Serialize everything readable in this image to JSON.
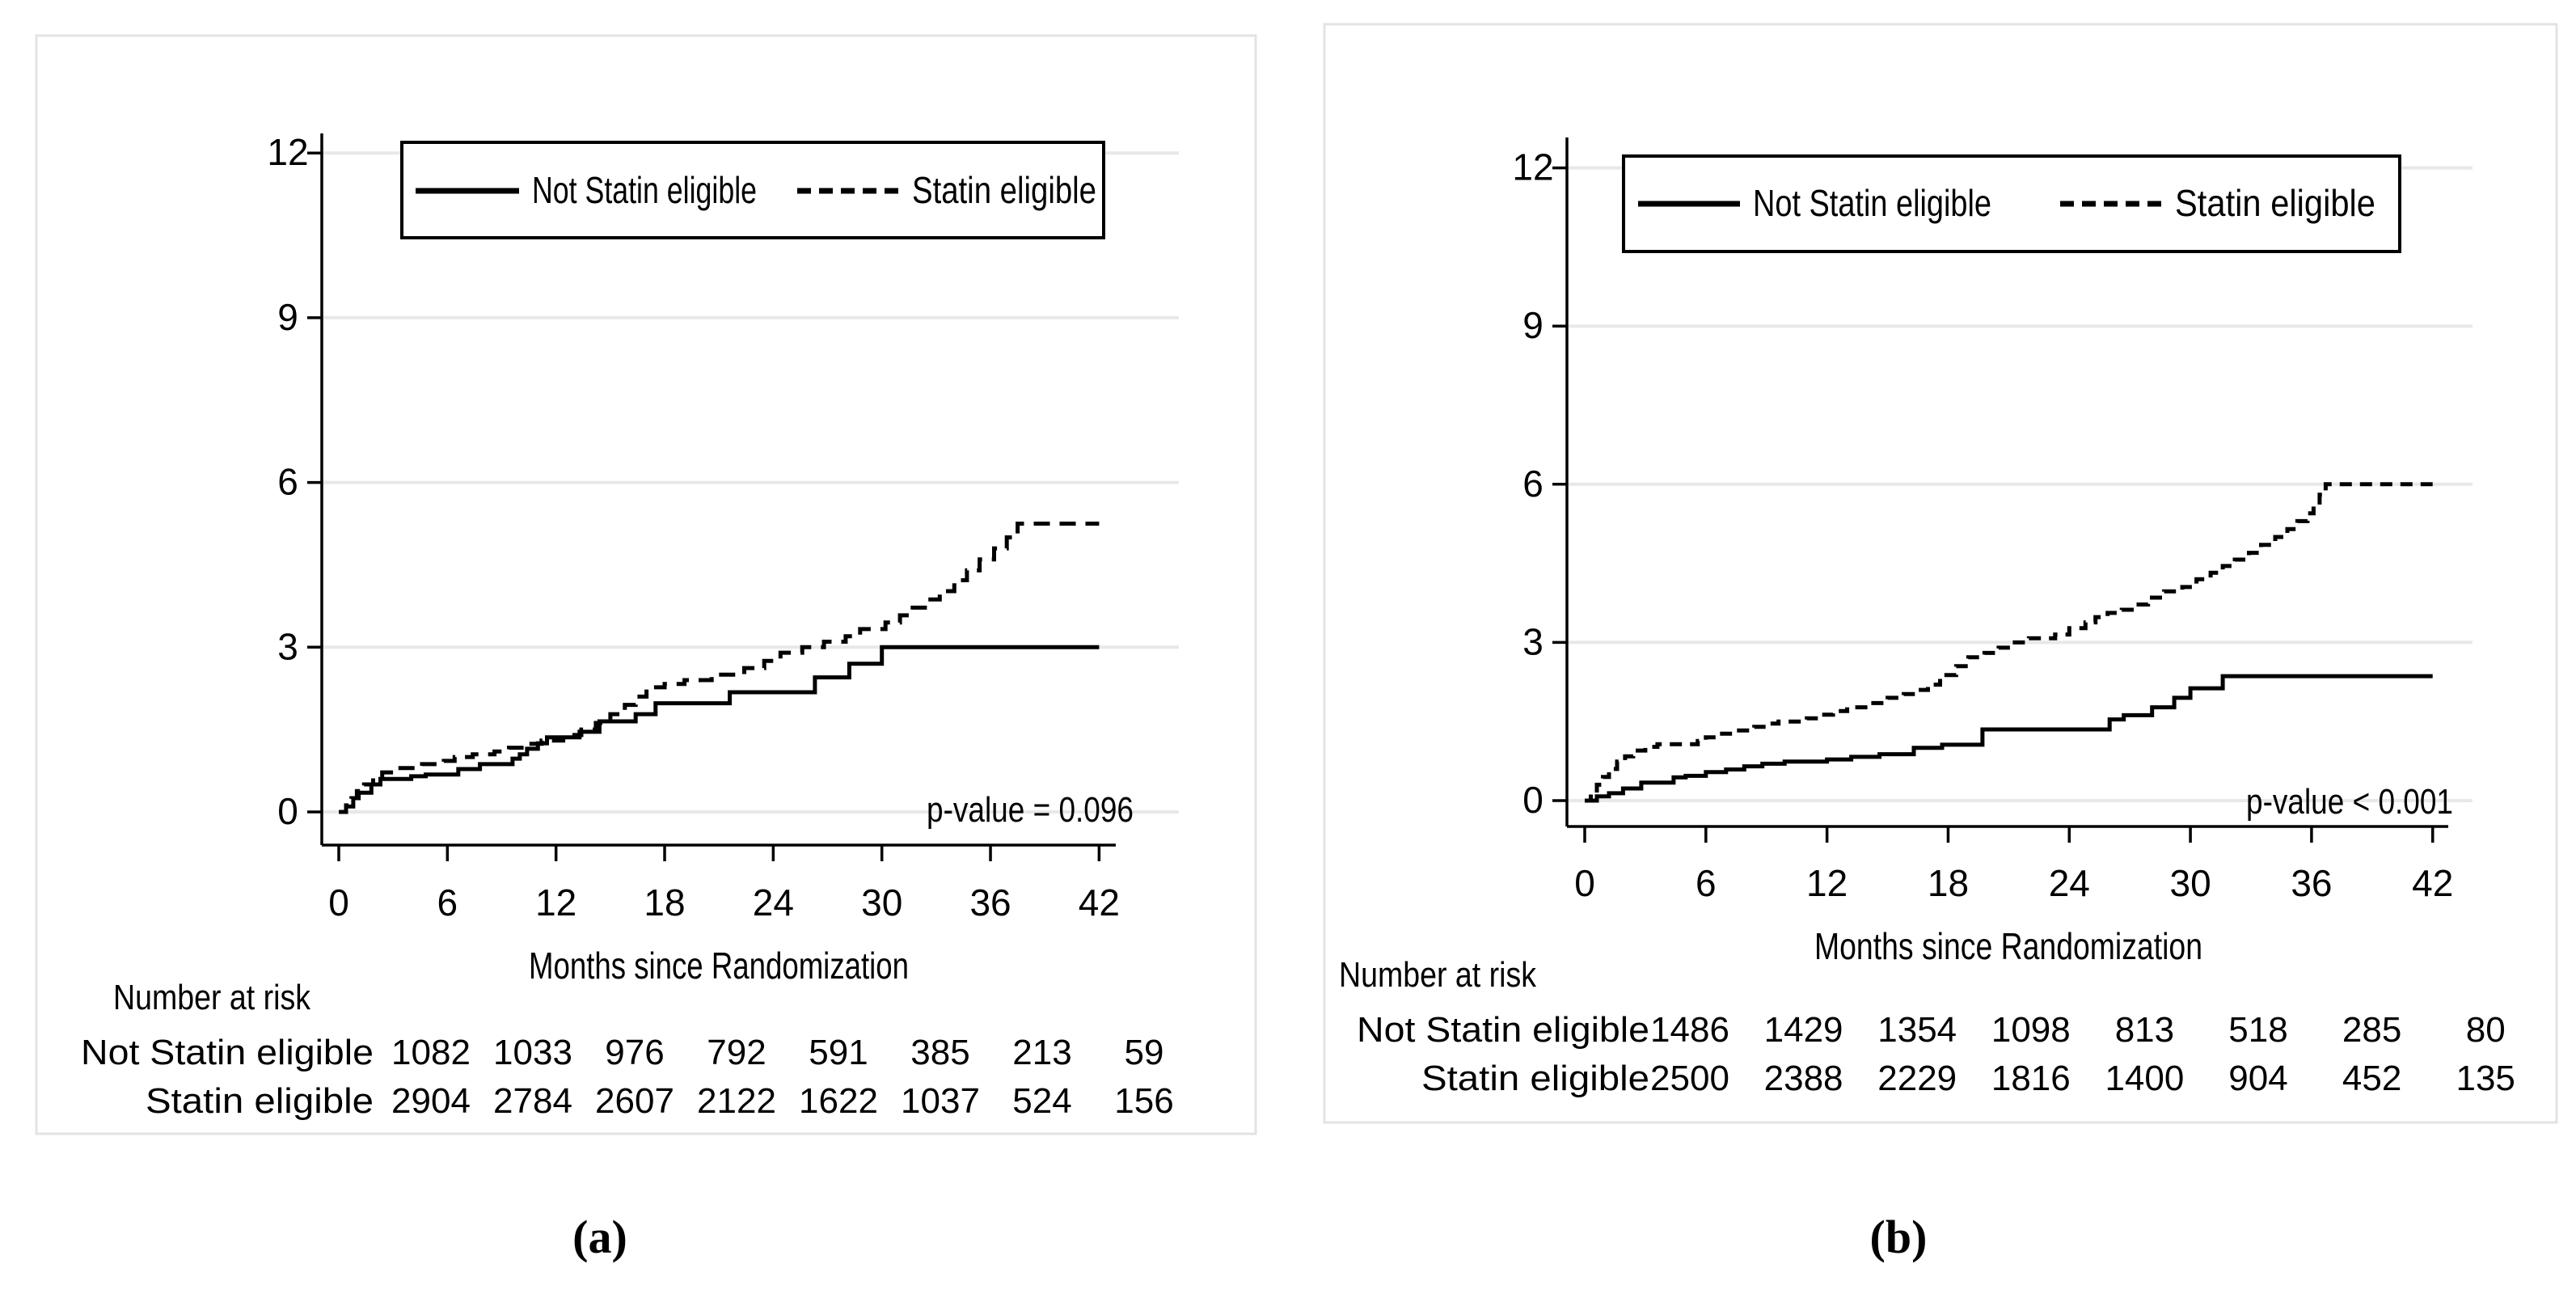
{
  "figure": {
    "background": "#ffffff",
    "grid_color": "#e8e8e8",
    "frame_color": "#e3e3e3",
    "line_color": "#000000"
  },
  "chart_data": [
    {
      "id": "a",
      "type": "line",
      "subtype": "kaplan-meier-cumulative-incidence-step",
      "caption": "(a)",
      "title": "",
      "xlabel": "Months since Randomization",
      "ylabel": "",
      "xlim": [
        0,
        42
      ],
      "ylim": [
        0,
        12
      ],
      "x_ticks": [
        0,
        6,
        12,
        18,
        24,
        30,
        36,
        42
      ],
      "y_ticks": [
        0,
        3,
        6,
        9,
        12
      ],
      "grid": true,
      "legend_position": "top-inside",
      "p_value_text": "p-value = 0.096",
      "series": [
        {
          "name": "Not Statin eligible",
          "style": "solid",
          "color": "#000000",
          "points": [
            [
              0,
              0
            ],
            [
              0.4,
              0.1
            ],
            [
              0.8,
              0.25
            ],
            [
              1.1,
              0.35
            ],
            [
              1.8,
              0.5
            ],
            [
              2.3,
              0.6
            ],
            [
              4,
              0.65
            ],
            [
              4.8,
              0.68
            ],
            [
              6.6,
              0.78
            ],
            [
              7.8,
              0.87
            ],
            [
              9.6,
              0.97
            ],
            [
              10,
              1.05
            ],
            [
              10.4,
              1.15
            ],
            [
              11,
              1.25
            ],
            [
              11.5,
              1.36
            ],
            [
              13.3,
              1.46
            ],
            [
              14.4,
              1.65
            ],
            [
              16.4,
              1.78
            ],
            [
              17.5,
              1.98
            ],
            [
              21.6,
              2.18
            ],
            [
              26.3,
              2.45
            ],
            [
              28.2,
              2.7
            ],
            [
              30,
              3
            ],
            [
              42,
              3
            ]
          ]
        },
        {
          "name": "Statin eligible",
          "style": "dashed",
          "color": "#000000",
          "points": [
            [
              0,
              0
            ],
            [
              0.4,
              0.12
            ],
            [
              0.7,
              0.25
            ],
            [
              1,
              0.38
            ],
            [
              1.4,
              0.5
            ],
            [
              1.9,
              0.62
            ],
            [
              2.4,
              0.72
            ],
            [
              3.2,
              0.8
            ],
            [
              4.6,
              0.87
            ],
            [
              5.8,
              0.93
            ],
            [
              6.4,
              1
            ],
            [
              7.4,
              1.05
            ],
            [
              8.6,
              1.1
            ],
            [
              9.4,
              1.17
            ],
            [
              10.3,
              1.24
            ],
            [
              11.2,
              1.3
            ],
            [
              12.4,
              1.4
            ],
            [
              13.4,
              1.5
            ],
            [
              14.2,
              1.62
            ],
            [
              15,
              1.78
            ],
            [
              15.8,
              1.95
            ],
            [
              16.4,
              2.1
            ],
            [
              17,
              2.27
            ],
            [
              18,
              2.33
            ],
            [
              19.1,
              2.4
            ],
            [
              20.6,
              2.5
            ],
            [
              22.4,
              2.62
            ],
            [
              23.5,
              2.75
            ],
            [
              24.4,
              2.9
            ],
            [
              25.6,
              3
            ],
            [
              26.8,
              3.1
            ],
            [
              28,
              3.2
            ],
            [
              28.8,
              3.33
            ],
            [
              30.2,
              3.45
            ],
            [
              31,
              3.58
            ],
            [
              31.7,
              3.72
            ],
            [
              32.5,
              3.87
            ],
            [
              33.2,
              4.02
            ],
            [
              34,
              4.22
            ],
            [
              34.7,
              4.4
            ],
            [
              35.4,
              4.6
            ],
            [
              36.2,
              4.8
            ],
            [
              36.9,
              5
            ],
            [
              37.5,
              5.25
            ],
            [
              42,
              5.25
            ]
          ]
        }
      ],
      "risk_table": {
        "title": "Number at risk",
        "rows": [
          {
            "label": "Not Statin eligible",
            "values": [
              1082,
              1033,
              976,
              792,
              591,
              385,
              213,
              59
            ]
          },
          {
            "label": "Statin eligible",
            "values": [
              2904,
              2784,
              2607,
              2122,
              1622,
              1037,
              524,
              156
            ]
          }
        ]
      }
    },
    {
      "id": "b",
      "type": "line",
      "subtype": "kaplan-meier-cumulative-incidence-step",
      "caption": "(b)",
      "title": "",
      "xlabel": "Months since Randomization",
      "ylabel": "",
      "xlim": [
        0,
        42
      ],
      "ylim": [
        0,
        12
      ],
      "x_ticks": [
        0,
        6,
        12,
        18,
        24,
        30,
        36,
        42
      ],
      "y_ticks": [
        0,
        3,
        6,
        9,
        12
      ],
      "grid": true,
      "legend_position": "top-inside",
      "p_value_text": "p-value < 0.001",
      "series": [
        {
          "name": "Not Statin eligible",
          "style": "solid",
          "color": "#000000",
          "points": [
            [
              0,
              0
            ],
            [
              0.6,
              0.08
            ],
            [
              1.2,
              0.14
            ],
            [
              1.9,
              0.23
            ],
            [
              2.8,
              0.34
            ],
            [
              4.4,
              0.44
            ],
            [
              5,
              0.47
            ],
            [
              6,
              0.54
            ],
            [
              7,
              0.59
            ],
            [
              7.9,
              0.65
            ],
            [
              8.8,
              0.7
            ],
            [
              9.9,
              0.74
            ],
            [
              12,
              0.78
            ],
            [
              13.2,
              0.83
            ],
            [
              14.6,
              0.88
            ],
            [
              16.3,
              1
            ],
            [
              17.7,
              1.06
            ],
            [
              19.7,
              1.35
            ],
            [
              26,
              1.54
            ],
            [
              26.7,
              1.62
            ],
            [
              28.1,
              1.77
            ],
            [
              29.2,
              1.95
            ],
            [
              30,
              2.13
            ],
            [
              31.6,
              2.36
            ],
            [
              42,
              2.36
            ]
          ]
        },
        {
          "name": "Statin eligible",
          "style": "dashed",
          "color": "#000000",
          "points": [
            [
              0,
              0
            ],
            [
              0.3,
              0.15
            ],
            [
              0.6,
              0.3
            ],
            [
              0.9,
              0.45
            ],
            [
              1.2,
              0.6
            ],
            [
              1.6,
              0.74
            ],
            [
              2,
              0.84
            ],
            [
              2.4,
              0.95
            ],
            [
              3,
              1.02
            ],
            [
              3.6,
              1.07
            ],
            [
              5.6,
              1.13
            ],
            [
              6,
              1.2
            ],
            [
              6.8,
              1.27
            ],
            [
              7.5,
              1.33
            ],
            [
              8.4,
              1.4
            ],
            [
              9,
              1.46
            ],
            [
              9.6,
              1.5
            ],
            [
              11,
              1.56
            ],
            [
              11.6,
              1.63
            ],
            [
              12.3,
              1.7
            ],
            [
              13,
              1.77
            ],
            [
              14,
              1.85
            ],
            [
              15,
              1.95
            ],
            [
              15.8,
              2.02
            ],
            [
              16.5,
              2.1
            ],
            [
              17,
              2.2
            ],
            [
              17.6,
              2.38
            ],
            [
              18.4,
              2.55
            ],
            [
              19,
              2.72
            ],
            [
              19.8,
              2.8
            ],
            [
              20.5,
              2.9
            ],
            [
              21.2,
              3
            ],
            [
              22,
              3.08
            ],
            [
              23.3,
              3.15
            ],
            [
              24,
              3.27
            ],
            [
              24.8,
              3.38
            ],
            [
              25.3,
              3.48
            ],
            [
              25.9,
              3.56
            ],
            [
              26.6,
              3.62
            ],
            [
              27.3,
              3.72
            ],
            [
              27.9,
              3.85
            ],
            [
              28.7,
              3.97
            ],
            [
              29.6,
              4.05
            ],
            [
              30.3,
              4.2
            ],
            [
              31,
              4.32
            ],
            [
              31.6,
              4.45
            ],
            [
              32.2,
              4.57
            ],
            [
              32.9,
              4.7
            ],
            [
              33.5,
              4.85
            ],
            [
              34.2,
              5
            ],
            [
              34.8,
              5.15
            ],
            [
              35.3,
              5.3
            ],
            [
              35.8,
              5.45
            ],
            [
              36.1,
              5.6
            ],
            [
              36.4,
              5.8
            ],
            [
              36.7,
              6
            ],
            [
              42,
              6
            ]
          ]
        }
      ],
      "risk_table": {
        "title": "Number at risk",
        "rows": [
          {
            "label": "Not Statin eligible",
            "values": [
              1486,
              1429,
              1354,
              1098,
              813,
              518,
              285,
              80
            ]
          },
          {
            "label": "Statin eligible",
            "values": [
              2500,
              2388,
              2229,
              1816,
              1400,
              904,
              452,
              135
            ]
          }
        ]
      }
    }
  ]
}
